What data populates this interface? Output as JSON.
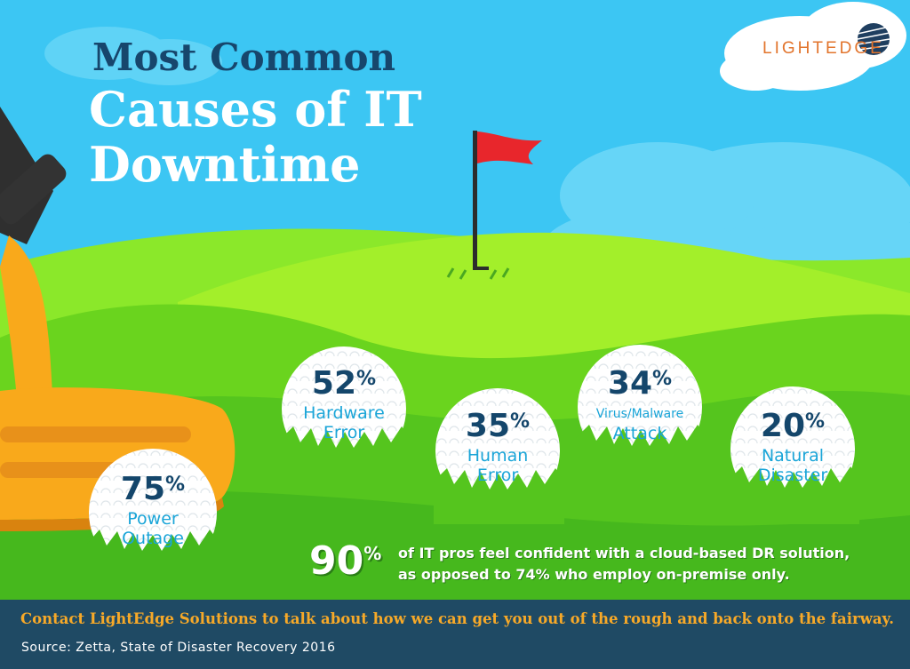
{
  "title": {
    "line1": "Most Common",
    "line2": "Causes of IT Downtime"
  },
  "logo": {
    "text": "LIGHTEDGE",
    "icon": "globe-lines-icon"
  },
  "causes": [
    {
      "value": "75",
      "suffix": "%",
      "label1": "Power",
      "label2": "Outage"
    },
    {
      "value": "52",
      "suffix": "%",
      "label1": "Hardware",
      "label2": "Error"
    },
    {
      "value": "35",
      "suffix": "%",
      "label1": "Human",
      "label2": "Error"
    },
    {
      "value": "34",
      "suffix": "%",
      "label1": "Virus/Malware",
      "label2": "Attack"
    },
    {
      "value": "20",
      "suffix": "%",
      "label1": "Natural",
      "label2": "Disaster"
    }
  ],
  "stat": {
    "value": "90",
    "suffix": "%",
    "line1": "of IT pros feel confident with a cloud-based DR solution,",
    "line2": "as opposed to 74% who employ on-premise only."
  },
  "footer": {
    "cta": "Contact LightEdge Solutions to talk about how we can get you out of the rough and back onto the fairway.",
    "source": "Source: Zetta, State of Disaster Recovery 2016"
  },
  "colors": {
    "sky": "#3cc6f3",
    "grass_light": "#7ee31b",
    "grass_dark": "#48bd20",
    "title_dark": "#17466c",
    "percent": "#14466b",
    "label": "#1aa5d8",
    "logo": "#e2742c",
    "flag": "#e8262c",
    "club": "#f9a91b",
    "footer_bg": "#1f4a64",
    "cta": "#f7a928"
  }
}
